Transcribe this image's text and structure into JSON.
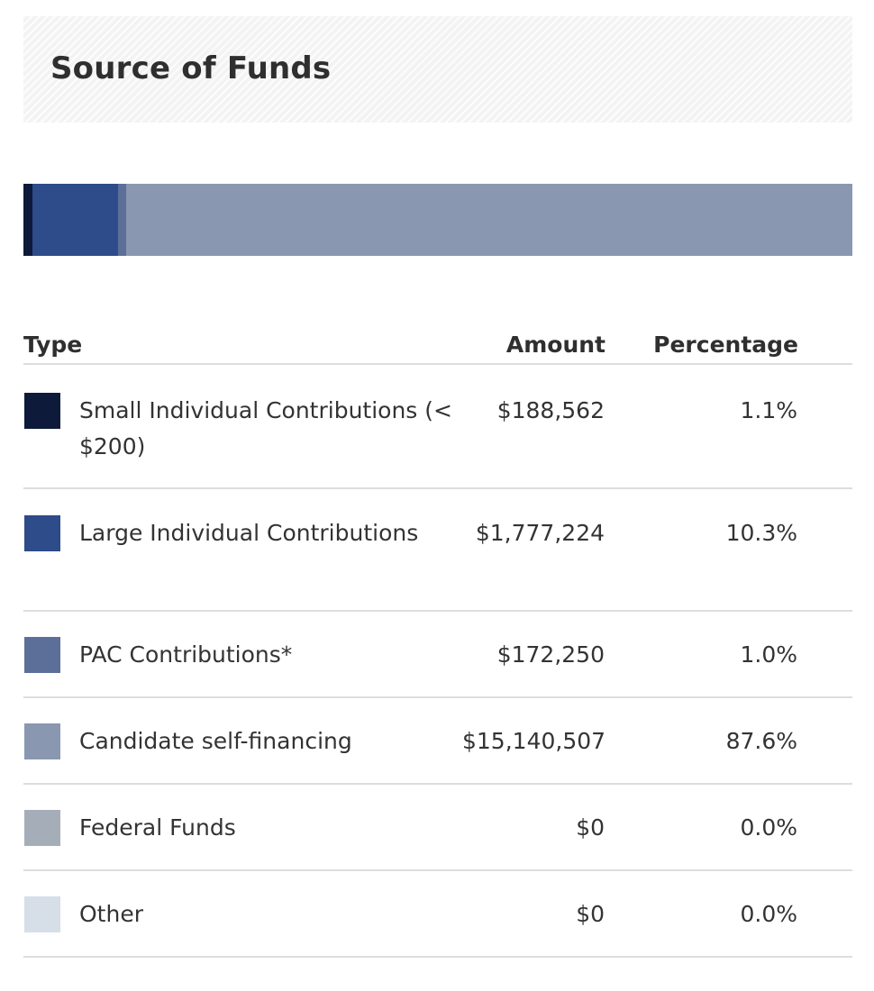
{
  "header": {
    "title": "Source of Funds"
  },
  "table": {
    "headers": {
      "type": "Type",
      "amount": "Amount",
      "percentage": "Percentage"
    },
    "rows": [
      {
        "type": "Small Individual Contributions (< $200)",
        "amount": "$188,562",
        "percentage": "1.1%",
        "color": "#0e1a3a"
      },
      {
        "type": "Large Individual Contributions",
        "amount": "$1,777,224",
        "percentage": "10.3%",
        "color": "#2e4b8a"
      },
      {
        "type": "PAC Contributions*",
        "amount": "$172,250",
        "percentage": "1.0%",
        "color": "#5c6f99"
      },
      {
        "type": "Candidate self-financing",
        "amount": "$15,140,507",
        "percentage": "87.6%",
        "color": "#8a97b0"
      },
      {
        "type": "Federal Funds",
        "amount": "$0",
        "percentage": "0.0%",
        "color": "#a5adb8"
      },
      {
        "type": "Other",
        "amount": "$0",
        "percentage": "0.0%",
        "color": "#d6dee8"
      }
    ]
  },
  "chart_data": {
    "type": "bar",
    "orientation": "horizontal-stacked",
    "title": "Source of Funds",
    "unit": "percent",
    "categories": [
      "Small Individual Contributions (< $200)",
      "Large Individual Contributions",
      "PAC Contributions*",
      "Candidate self-financing",
      "Federal Funds",
      "Other"
    ],
    "values": [
      1.1,
      10.3,
      1.0,
      87.6,
      0.0,
      0.0
    ],
    "amounts": [
      188562,
      1777224,
      172250,
      15140507,
      0,
      0
    ],
    "colors": [
      "#0e1a3a",
      "#2e4b8a",
      "#5c6f99",
      "#8a97b0",
      "#a5adb8",
      "#d6dee8"
    ],
    "xlim": [
      0,
      100
    ]
  }
}
